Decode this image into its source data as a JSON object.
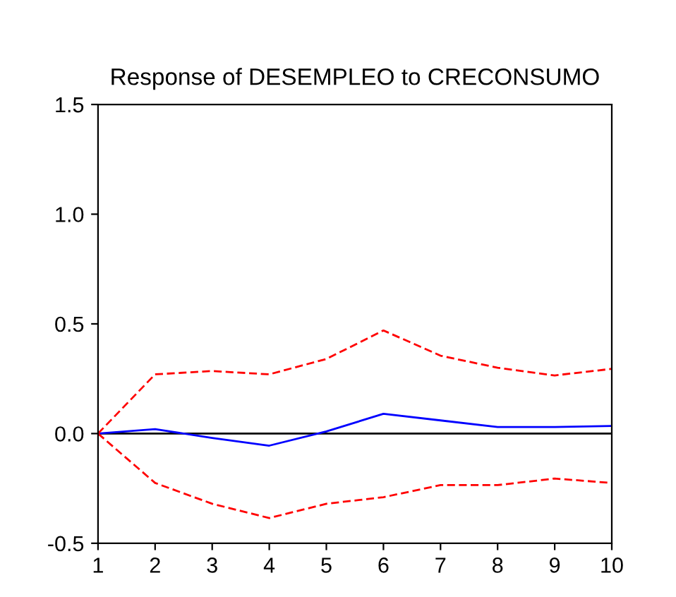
{
  "chart_data": {
    "type": "line",
    "title": "Response of DESEMPLEO to CRECONSUMO",
    "x": [
      1,
      2,
      3,
      4,
      5,
      6,
      7,
      8,
      9,
      10
    ],
    "series": [
      {
        "color": "#0000ff",
        "line_style": "solid",
        "values": [
          0,
          0.02,
          -0.02,
          -0.055,
          0.01,
          0.09,
          0.06,
          0.03,
          0.03,
          0.035
        ]
      },
      {
        "color": "#ff0000",
        "line_style": "dashed",
        "values": [
          0,
          0.27,
          0.285,
          0.27,
          0.34,
          0.47,
          0.355,
          0.3,
          0.265,
          0.295
        ]
      },
      {
        "color": "#ff0000",
        "line_style": "dashed",
        "values": [
          0,
          -0.225,
          -0.32,
          -0.385,
          -0.32,
          -0.29,
          -0.235,
          -0.235,
          -0.205,
          -0.225
        ]
      }
    ],
    "xlim": [
      1,
      10
    ],
    "xticks": [
      1,
      2,
      3,
      4,
      5,
      6,
      7,
      8,
      9,
      10
    ],
    "ylim": [
      -0.5,
      1.5
    ],
    "yticks": [
      {
        "value": -0.5,
        "label": "-0.5"
      },
      {
        "value": 0,
        "label": "0.0"
      },
      {
        "value": 0.5,
        "label": "0.5"
      },
      {
        "value": 1.0,
        "label": "1.0"
      },
      {
        "value": 1.5,
        "label": "1.5"
      }
    ],
    "ref_lines": [
      {
        "axis": "y",
        "value": 0,
        "color": "#000000"
      }
    ],
    "grid": false,
    "legend": false
  }
}
